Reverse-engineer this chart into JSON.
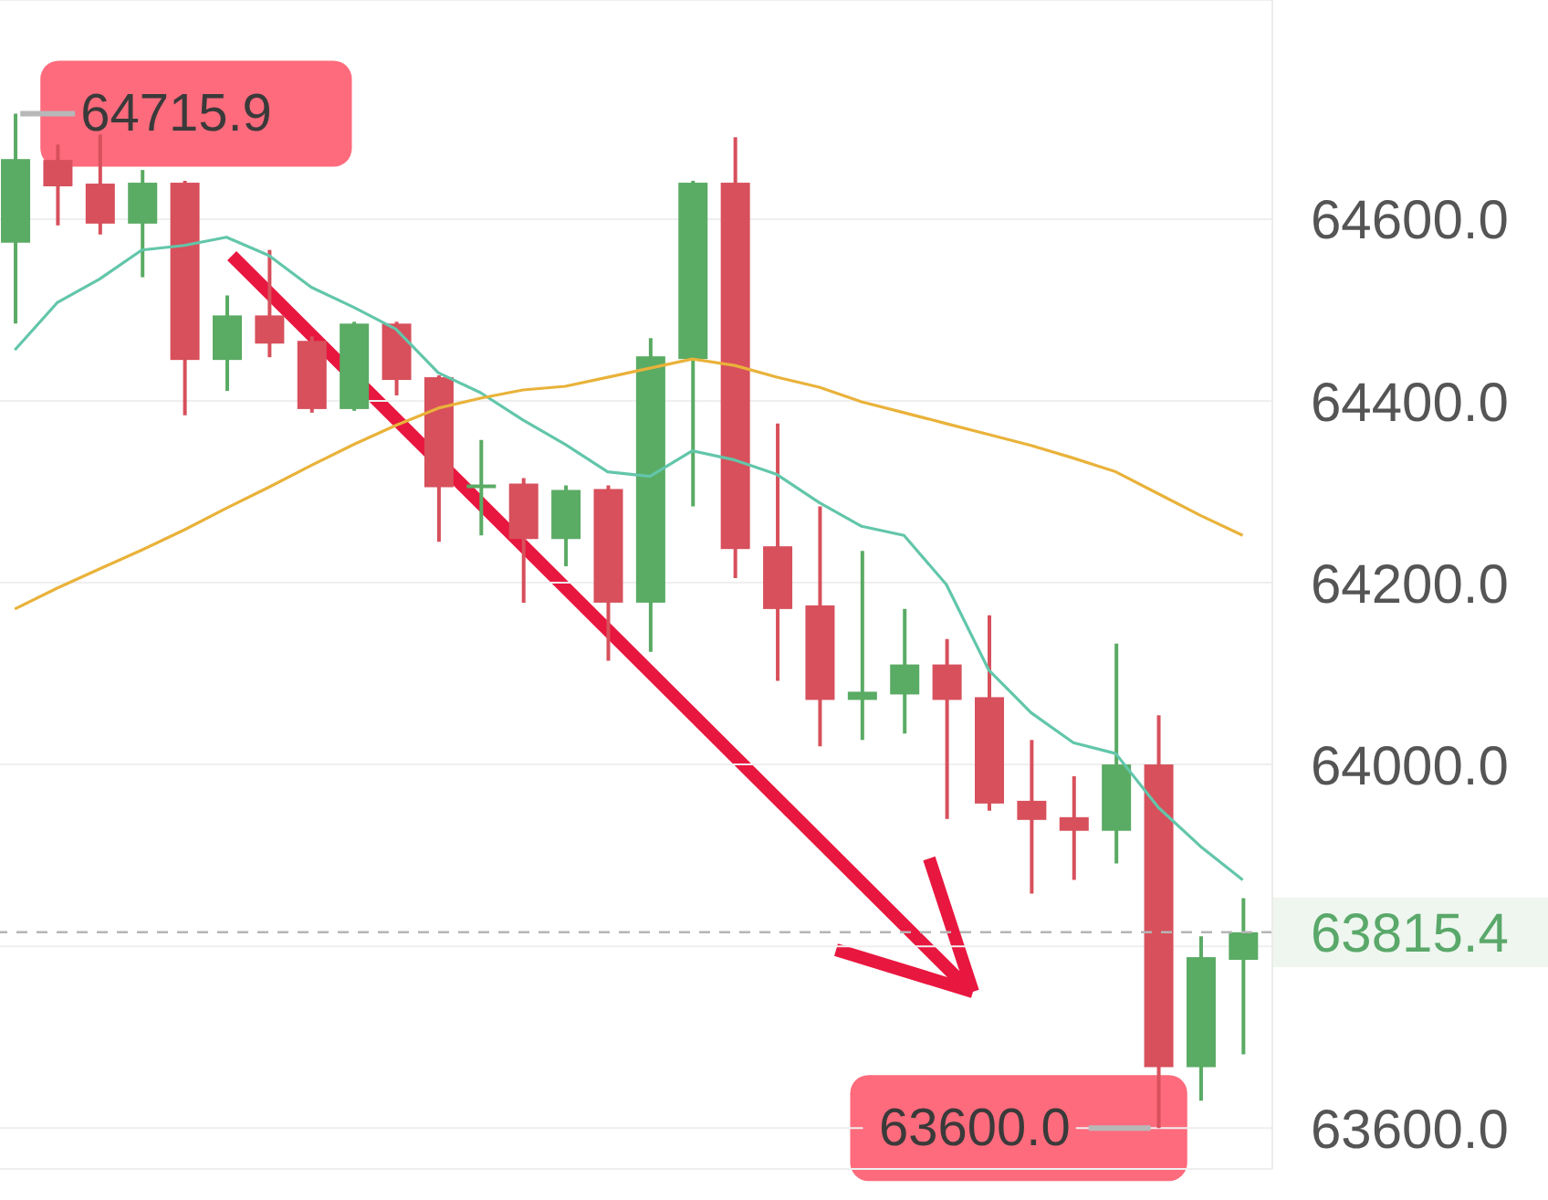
{
  "chart_data": {
    "type": "candlestick",
    "categories": [
      null,
      null,
      null,
      null,
      null,
      null,
      null,
      null,
      null,
      null,
      null,
      null,
      null,
      null,
      null,
      null,
      null,
      null,
      null,
      null,
      null,
      null,
      null,
      null,
      null,
      null,
      null,
      null,
      null,
      null
    ],
    "ohlc": [
      [
        64574,
        64715.9,
        64485,
        64666
      ],
      [
        64665,
        64682,
        64593,
        64636
      ],
      [
        64639,
        64693,
        64583,
        64595
      ],
      [
        64595,
        64654,
        64536,
        64640
      ],
      [
        64640,
        64642,
        64384,
        64445
      ],
      [
        64445,
        64516,
        64411,
        64494
      ],
      [
        64494,
        64566,
        64448,
        64463
      ],
      [
        64466,
        64471,
        64387,
        64391
      ],
      [
        64391,
        64487,
        64389,
        64485
      ],
      [
        64485,
        64487,
        64406,
        64423
      ],
      [
        64426,
        64428,
        64245,
        64305
      ],
      [
        64306,
        64357,
        64252,
        64308
      ],
      [
        64309,
        64315,
        64178,
        64248
      ],
      [
        64248,
        64307,
        64218,
        64302
      ],
      [
        64303,
        64307,
        64114,
        64178
      ],
      [
        64178,
        64469,
        64124,
        64449
      ],
      [
        64446,
        64642,
        64284,
        64640
      ],
      [
        64640,
        64690,
        64205,
        64237
      ],
      [
        64240,
        64375,
        64092,
        64171
      ],
      [
        64175,
        64284,
        64020,
        64071
      ],
      [
        64071,
        64235,
        64027,
        64080
      ],
      [
        64077,
        64171,
        64034,
        64110
      ],
      [
        64110,
        64138,
        63940,
        64071
      ],
      [
        64074,
        64164,
        63949,
        63957
      ],
      [
        63960,
        64027,
        63858,
        63939
      ],
      [
        63942,
        63987,
        63873,
        63927
      ],
      [
        63927,
        64133,
        63891,
        64000
      ],
      [
        64000,
        64054,
        63600.0,
        63667
      ],
      [
        63667,
        63811,
        63630,
        63788
      ],
      [
        63785,
        63853,
        63681,
        63815.4
      ]
    ],
    "colors": [
      "#5aab64",
      "#d7505c",
      "#d7505c",
      "#5aab64",
      "#d7505c",
      "#5aab64",
      "#d7505c",
      "#d7505c",
      "#5aab64",
      "#d7505c",
      "#d7505c",
      "#5aab64",
      "#d7505c",
      "#5aab64",
      "#d7505c",
      "#5aab64",
      "#5aab64",
      "#d7505c",
      "#d7505c",
      "#d7505c",
      "#5aab64",
      "#5aab64",
      "#d7505c",
      "#d7505c",
      "#d7505c",
      "#d7505c",
      "#5aab64",
      "#d7505c",
      "#5aab64",
      "#5aab64"
    ],
    "series": [
      {
        "type": "line",
        "color": "#62c6aa",
        "values": [
          64456,
          64508,
          64534,
          64566,
          64571,
          64580,
          64560,
          64525,
          64503,
          64479,
          64431,
          64409,
          64379,
          64352,
          64322,
          64317,
          64345,
          64335,
          64319,
          64288,
          64262,
          64252,
          64198,
          64104,
          64057,
          64024,
          64012,
          63953,
          63910,
          63873
        ]
      },
      {
        "type": "line",
        "color": "#e9b23a",
        "values": [
          64171,
          64194,
          64215,
          64236,
          64258,
          64282,
          64305,
          64329,
          64352,
          64373,
          64392,
          64403,
          64412,
          64416,
          64426,
          64436,
          64446,
          64439,
          64426,
          64415,
          64399,
          64387,
          64375,
          64363,
          64351,
          64337,
          64322,
          64298,
          64274,
          64252
        ]
      }
    ],
    "ylim": [
      63555,
      64841
    ],
    "yticks": [
      {
        "value": 63600,
        "label": "63600.0"
      },
      {
        "value": 63800,
        "label": null
      },
      {
        "value": 64000,
        "label": "64000.0"
      },
      {
        "value": 64200,
        "label": "64200.0"
      },
      {
        "value": 64400,
        "label": "64400.0"
      },
      {
        "value": 64600,
        "label": "64600.0"
      }
    ],
    "grid": "y",
    "ref_lines": [
      {
        "axis": "y",
        "value": 63815.4,
        "label": "63815.4",
        "color": "#b5b5b5",
        "line_style": "dashed"
      }
    ],
    "annotations": [
      "64715.9",
      "63600.0"
    ]
  }
}
